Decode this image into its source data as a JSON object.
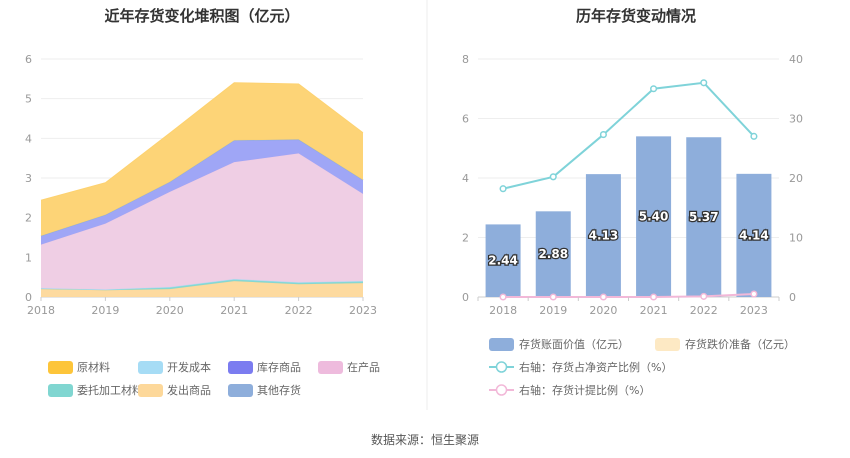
{
  "source_label": "数据来源：恒生聚源",
  "chart_data": [
    {
      "type": "area",
      "title": "近年存货变化堆积图（亿元）",
      "x": [
        "2018",
        "2019",
        "2020",
        "2021",
        "2022",
        "2023"
      ],
      "ylim": [
        0,
        6
      ],
      "yticks": [
        "0",
        "1",
        "2",
        "3",
        "4",
        "5",
        "6"
      ],
      "grid": true,
      "legend_position": "bottom",
      "series": [
        {
          "name": "发出商品",
          "color": "#fdd89a",
          "values": [
            0.2,
            0.17,
            0.2,
            0.4,
            0.32,
            0.35
          ]
        },
        {
          "name": "委托加工材料",
          "color": "#80d6d1",
          "values": [
            0.02,
            0.02,
            0.05,
            0.05,
            0.05,
            0.05
          ]
        },
        {
          "name": "开发成本",
          "color": "#a6dcf5",
          "values": [
            0,
            0,
            0,
            0,
            0,
            0
          ]
        },
        {
          "name": "在产品",
          "color": "#eecbe3",
          "values": [
            1.1,
            1.66,
            2.4,
            2.95,
            3.25,
            2.2
          ]
        },
        {
          "name": "库存商品",
          "color": "#9aa1f5",
          "values": [
            0.22,
            0.22,
            0.25,
            0.55,
            0.35,
            0.35
          ]
        },
        {
          "name": "其他存货",
          "color": "#8eaedb",
          "values": [
            0,
            0,
            0,
            0,
            0,
            0
          ]
        },
        {
          "name": "原材料",
          "color": "#fdd270",
          "values": [
            0.9,
            0.81,
            1.23,
            1.45,
            1.4,
            1.19
          ]
        }
      ],
      "legend": [
        {
          "name": "原材料",
          "color": "#fdc53a"
        },
        {
          "name": "开发成本",
          "color": "#a6dcf5"
        },
        {
          "name": "库存商品",
          "color": "#7b7cf0"
        },
        {
          "name": "在产品",
          "color": "#eebbdd"
        },
        {
          "name": "委托加工材料",
          "color": "#80d6d1"
        },
        {
          "name": "发出商品",
          "color": "#fdd89a"
        },
        {
          "name": "其他存货",
          "color": "#8eaedb"
        }
      ]
    },
    {
      "type": "bar",
      "title": "历年存货变动情况",
      "categories": [
        "2018",
        "2019",
        "2020",
        "2021",
        "2022",
        "2023"
      ],
      "ylim": [
        0,
        8
      ],
      "yticks": [
        "0",
        "2",
        "4",
        "6",
        "8"
      ],
      "y2lim": [
        0,
        40
      ],
      "y2ticks": [
        "0",
        "10",
        "20",
        "30",
        "40"
      ],
      "grid": true,
      "legend_position": "bottom",
      "series": [
        {
          "name": "存货账面价值（亿元）",
          "kind": "bar",
          "axis": "left",
          "color": "#8eaedb",
          "values": [
            2.44,
            2.88,
            4.13,
            5.4,
            5.37,
            4.14
          ],
          "labels": [
            "2.44",
            "2.88",
            "4.13",
            "5.40",
            "5.37",
            "4.14"
          ]
        },
        {
          "name": "存货跌价准备（亿元）",
          "kind": "bar",
          "axis": "left",
          "color": "#fde9c4",
          "values": [
            0,
            0,
            0,
            0,
            0,
            0
          ]
        },
        {
          "name": "右轴：存货占净资产比例（%）",
          "kind": "line",
          "axis": "right",
          "color": "#7fd3d9",
          "values": [
            18.2,
            20.2,
            27.3,
            35.0,
            36.0,
            27.0
          ]
        },
        {
          "name": "右轴：存货计提比例（%）",
          "kind": "line",
          "axis": "right",
          "color": "#f2b8d8",
          "values": [
            0,
            0,
            0,
            0,
            0.1,
            0.5
          ]
        }
      ]
    }
  ]
}
